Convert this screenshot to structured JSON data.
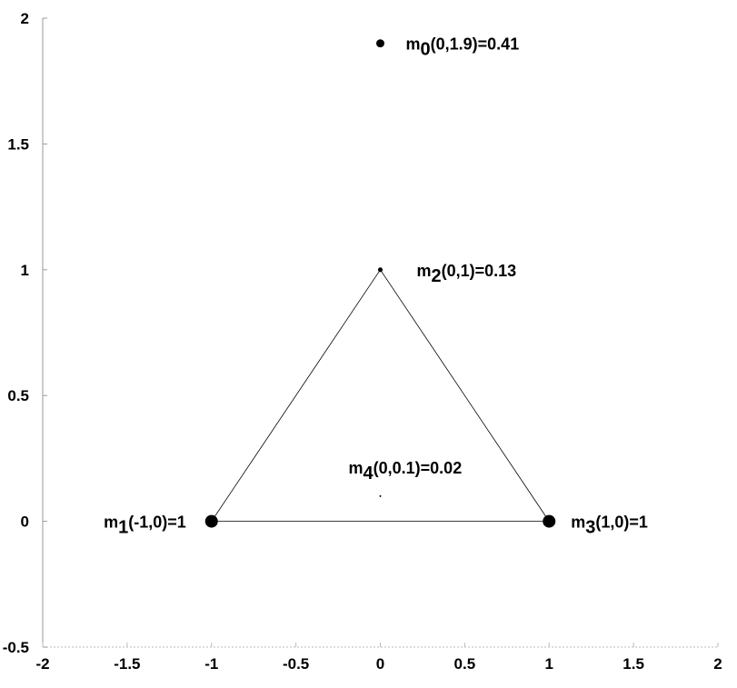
{
  "chart_data": {
    "type": "scatter",
    "x": [
      0,
      -1,
      0,
      1,
      0
    ],
    "values": [
      1.9,
      0,
      1,
      0,
      0.1
    ],
    "sizes": [
      0.41,
      1,
      0.13,
      1,
      0.02
    ],
    "labels": [
      {
        "name": "m",
        "sub": "0",
        "text": "(0,1.9)=0.41"
      },
      {
        "name": "m",
        "sub": "1",
        "text": "(-1,0)=1"
      },
      {
        "name": "m",
        "sub": "2",
        "text": "(0,1)=0.13"
      },
      {
        "name": "m",
        "sub": "3",
        "text": "(1,0)=1"
      },
      {
        "name": "m",
        "sub": "4",
        "text": "(0,0.1)=0.02"
      }
    ],
    "edges": [
      [
        1,
        2
      ],
      [
        2,
        3
      ],
      [
        1,
        3
      ]
    ],
    "color": "#000000",
    "xlim": [
      -2,
      2
    ],
    "ylim": [
      -0.5,
      2
    ],
    "xticks": [
      -2,
      -1.5,
      -1,
      -0.5,
      0,
      0.5,
      1,
      1.5,
      2
    ],
    "yticks": [
      -0.5,
      0,
      0.5,
      1,
      1.5,
      2
    ],
    "grid": false
  }
}
